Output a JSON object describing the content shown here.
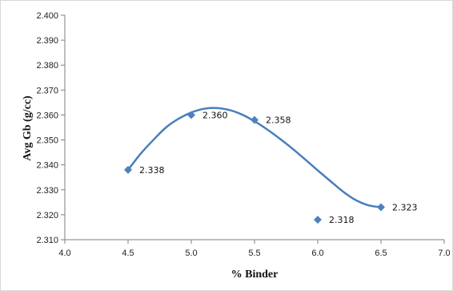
{
  "chart_data": {
    "type": "scatter",
    "title": "",
    "xlabel": "% Binder",
    "ylabel": "Avg Gb (g/cc)",
    "xlim": [
      4.0,
      7.0
    ],
    "ylim": [
      2.31,
      2.4
    ],
    "x_ticks": [
      "4.0",
      "4.5",
      "5.0",
      "5.5",
      "6.0",
      "6.5",
      "7.0"
    ],
    "y_ticks": [
      "2.310",
      "2.320",
      "2.330",
      "2.340",
      "2.350",
      "2.360",
      "2.370",
      "2.380",
      "2.390",
      "2.400"
    ],
    "grid": false,
    "legend": "none",
    "marker": "diamond",
    "series": [
      {
        "x": [
          4.5,
          5.0,
          5.5,
          6.0,
          6.5
        ],
        "y": [
          2.338,
          2.36,
          2.358,
          2.318,
          2.323
        ],
        "labels": [
          "2.338",
          "2.360",
          "2.358",
          "2.318",
          "2.323"
        ]
      }
    ],
    "trendline": {
      "type": "polynomial",
      "x": [
        4.5,
        4.6,
        4.7,
        4.8,
        4.9,
        5.0,
        5.1,
        5.2,
        5.3,
        5.4,
        5.5,
        5.6,
        5.7,
        5.8,
        5.9,
        6.0,
        6.1,
        6.2,
        6.3,
        6.4,
        6.5
      ],
      "y": [
        2.338,
        2.3445,
        2.35,
        2.355,
        2.3585,
        2.361,
        2.3625,
        2.3628,
        2.362,
        2.3602,
        2.3575,
        2.3542,
        2.3505,
        2.3465,
        2.3422,
        2.3378,
        2.3335,
        2.3293,
        2.3259,
        2.3238,
        2.323
      ]
    },
    "colors": {
      "marker": "#4f81bd",
      "line": "#4a7ebb",
      "axis": "#7f7f7f"
    }
  }
}
